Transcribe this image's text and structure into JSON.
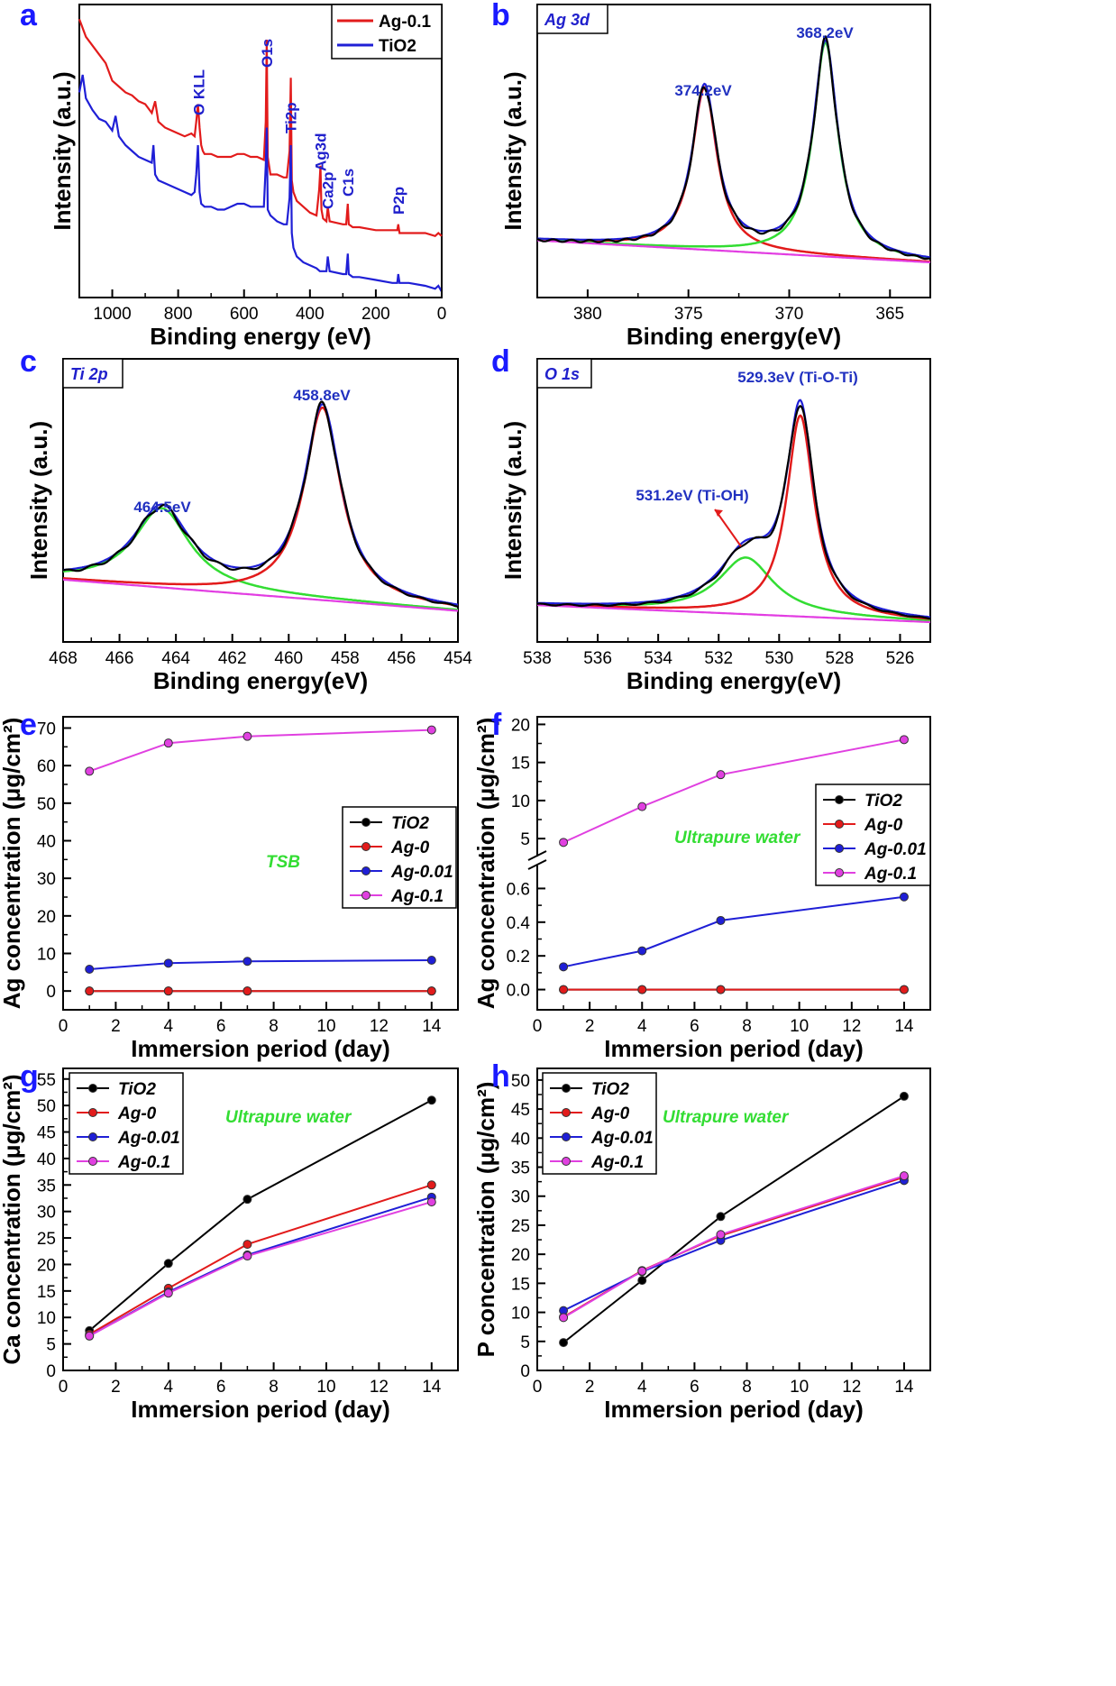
{
  "chart_data": [
    {
      "panel": "a",
      "type": "line",
      "xlabel": "Binding energy (eV)",
      "ylabel": "Intensity (a.u.)",
      "xlim": [
        1100,
        0
      ],
      "xticks": [
        1000,
        800,
        600,
        400,
        200,
        0
      ],
      "legend": {
        "placement": "top-right",
        "entries": [
          "Ag-0.1",
          "TiO2"
        ]
      },
      "series": [
        {
          "name": "Ag-0.1",
          "color": "#e21b1b",
          "x": [
            1100,
            1080,
            1040,
            1020,
            1000,
            980,
            960,
            940,
            920,
            900,
            880,
            870,
            860,
            840,
            820,
            800,
            780,
            760,
            750,
            745,
            740,
            735,
            730,
            725,
            720,
            700,
            680,
            660,
            640,
            620,
            600,
            580,
            560,
            540,
            534,
            531,
            528,
            520,
            500,
            480,
            470,
            462,
            458,
            455,
            450,
            440,
            420,
            400,
            380,
            372,
            368,
            365,
            360,
            350,
            346,
            340,
            300,
            290,
            285,
            282,
            270,
            250,
            200,
            150,
            135,
            132,
            128,
            100,
            50,
            20,
            10,
            0
          ],
          "y": [
            0.95,
            0.89,
            0.83,
            0.8,
            0.74,
            0.72,
            0.7,
            0.69,
            0.67,
            0.66,
            0.63,
            0.67,
            0.6,
            0.58,
            0.57,
            0.56,
            0.55,
            0.56,
            0.55,
            0.6,
            0.66,
            0.58,
            0.52,
            0.5,
            0.49,
            0.49,
            0.48,
            0.48,
            0.48,
            0.49,
            0.49,
            0.48,
            0.48,
            0.47,
            0.6,
            0.88,
            0.48,
            0.42,
            0.42,
            0.41,
            0.41,
            0.5,
            0.75,
            0.4,
            0.36,
            0.33,
            0.31,
            0.29,
            0.28,
            0.37,
            0.45,
            0.3,
            0.27,
            0.26,
            0.31,
            0.26,
            0.25,
            0.25,
            0.32,
            0.25,
            0.24,
            0.24,
            0.23,
            0.23,
            0.23,
            0.25,
            0.22,
            0.22,
            0.22,
            0.21,
            0.22,
            0.21
          ]
        },
        {
          "name": "TiO2",
          "color": "#1f1fd6",
          "x": [
            1100,
            1090,
            1080,
            1060,
            1040,
            1020,
            1000,
            990,
            980,
            960,
            940,
            920,
            900,
            880,
            875,
            870,
            860,
            840,
            820,
            800,
            780,
            760,
            750,
            745,
            740,
            735,
            730,
            720,
            700,
            680,
            660,
            640,
            620,
            600,
            580,
            560,
            540,
            534,
            531,
            528,
            520,
            500,
            480,
            470,
            462,
            458,
            455,
            450,
            440,
            420,
            400,
            380,
            370,
            350,
            346,
            340,
            300,
            290,
            285,
            282,
            270,
            250,
            200,
            150,
            135,
            132,
            128,
            100,
            50,
            20,
            10,
            0
          ],
          "y": [
            0.7,
            0.76,
            0.68,
            0.64,
            0.61,
            0.6,
            0.57,
            0.62,
            0.55,
            0.52,
            0.5,
            0.48,
            0.47,
            0.46,
            0.52,
            0.42,
            0.4,
            0.39,
            0.38,
            0.37,
            0.36,
            0.35,
            0.36,
            0.42,
            0.52,
            0.36,
            0.32,
            0.31,
            0.31,
            0.3,
            0.3,
            0.31,
            0.32,
            0.32,
            0.31,
            0.31,
            0.31,
            0.45,
            0.58,
            0.3,
            0.28,
            0.26,
            0.25,
            0.25,
            0.34,
            0.52,
            0.22,
            0.17,
            0.14,
            0.12,
            0.11,
            0.1,
            0.09,
            0.09,
            0.14,
            0.09,
            0.08,
            0.08,
            0.15,
            0.08,
            0.07,
            0.07,
            0.06,
            0.05,
            0.05,
            0.08,
            0.05,
            0.05,
            0.04,
            0.03,
            0.04,
            0.02
          ]
        }
      ],
      "annotations": [
        {
          "text": "O KLL",
          "x": 738
        },
        {
          "text": "O1s",
          "x": 531
        },
        {
          "text": "Ti2p",
          "x": 458
        },
        {
          "text": "Ag3d",
          "x": 368
        },
        {
          "text": "Ca2p",
          "x": 346
        },
        {
          "text": "C1s",
          "x": 284
        },
        {
          "text": "P2p",
          "x": 132
        }
      ]
    },
    {
      "panel": "b",
      "type": "line",
      "tag": "Ag 3d",
      "xlabel": "Binding energy(eV)",
      "ylabel": "Intensity (a.u.)",
      "xlim": [
        382.5,
        363
      ],
      "xticks": [
        380,
        375,
        370,
        365
      ],
      "peaks": [
        {
          "label": "374.2eV",
          "x": 374.2
        },
        {
          "label": "368.2eV",
          "x": 368.2
        }
      ]
    },
    {
      "panel": "c",
      "type": "line",
      "tag": "Ti 2p",
      "xlabel": "Binding energy(eV)",
      "ylabel": "Intensity (a.u.)",
      "xlim": [
        468,
        454
      ],
      "xticks": [
        468,
        466,
        464,
        462,
        460,
        458,
        456,
        454
      ],
      "peaks": [
        {
          "label": "464.5eV",
          "x": 464.5
        },
        {
          "label": "458.8eV",
          "x": 458.8
        }
      ]
    },
    {
      "panel": "d",
      "type": "line",
      "tag": "O 1s",
      "xlabel": "Binding energy(eV)",
      "ylabel": "Intensity (a.u.)",
      "xlim": [
        538,
        525
      ],
      "xticks": [
        538,
        536,
        534,
        532,
        530,
        528,
        526
      ],
      "peaks": [
        {
          "label": "529.3eV (Ti-O-Ti)",
          "x": 529.3
        },
        {
          "label": "531.2eV (Ti-OH)",
          "x": 531.2
        }
      ]
    },
    {
      "panel": "e",
      "type": "line",
      "xlabel": "Immersion period (day)",
      "ylabel": "Ag concentration (μg/cm²)",
      "xlim": [
        0,
        15
      ],
      "ylim": [
        -5,
        73
      ],
      "xticks": [
        0,
        2,
        4,
        6,
        8,
        10,
        12,
        14
      ],
      "yticks": [
        0,
        10,
        20,
        30,
        40,
        50,
        60,
        70
      ],
      "medium": "TSB",
      "legend": {
        "placement": "center-right"
      },
      "x": [
        1,
        4,
        7,
        14
      ],
      "series": [
        {
          "name": "TiO2",
          "color": "#000000",
          "values": [
            0,
            0,
            0,
            0
          ]
        },
        {
          "name": "Ag-0",
          "color": "#e21b1b",
          "values": [
            0,
            0,
            0,
            0
          ]
        },
        {
          "name": "Ag-0.01",
          "color": "#1f1fd6",
          "values": [
            5.8,
            7.4,
            7.9,
            8.2
          ]
        },
        {
          "name": "Ag-0.1",
          "color": "#e040e0",
          "values": [
            58.5,
            66,
            67.8,
            69.5
          ]
        }
      ]
    },
    {
      "panel": "f",
      "type": "line",
      "xlabel": "Immersion period (day)",
      "ylabel": "Ag concentration (μg/cm²)",
      "xlim": [
        0,
        15
      ],
      "axis_break": true,
      "ylim_lower": [
        -0.12,
        0.72
      ],
      "ylim_upper": [
        3,
        21
      ],
      "xticks": [
        0,
        2,
        4,
        6,
        8,
        10,
        12,
        14
      ],
      "yticks_lower": [
        0.0,
        0.2,
        0.4,
        0.6
      ],
      "yticks_upper": [
        5,
        10,
        15,
        20
      ],
      "ytick_labels_lower": [
        "0.0",
        "0.2",
        "0.4",
        "0.6"
      ],
      "medium": "Ultrapure water",
      "legend": {
        "placement": "center-right"
      },
      "x": [
        1,
        4,
        7,
        14
      ],
      "series": [
        {
          "name": "TiO2",
          "color": "#000000",
          "values": [
            0,
            0,
            0,
            0
          ]
        },
        {
          "name": "Ag-0",
          "color": "#e21b1b",
          "values": [
            0,
            0,
            0,
            0
          ]
        },
        {
          "name": "Ag-0.01",
          "color": "#1f1fd6",
          "values": [
            0.135,
            0.23,
            0.41,
            0.55
          ]
        },
        {
          "name": "Ag-0.1",
          "color": "#e040e0",
          "values": [
            4.5,
            9.2,
            13.4,
            18
          ]
        }
      ]
    },
    {
      "panel": "g",
      "type": "line",
      "xlabel": "Immersion period (day)",
      "ylabel": "Ca concentration (μg/cm²)",
      "xlim": [
        0,
        15
      ],
      "ylim": [
        0,
        57
      ],
      "xticks": [
        0,
        2,
        4,
        6,
        8,
        10,
        12,
        14
      ],
      "yticks": [
        0,
        5,
        10,
        15,
        20,
        25,
        30,
        35,
        40,
        45,
        50,
        55
      ],
      "medium": "Ultrapure water",
      "legend": {
        "placement": "top-left"
      },
      "x": [
        1,
        4,
        7,
        14
      ],
      "series": [
        {
          "name": "TiO2",
          "color": "#000000",
          "values": [
            7.5,
            20.2,
            32.3,
            51
          ]
        },
        {
          "name": "Ag-0",
          "color": "#e21b1b",
          "values": [
            6.8,
            15.5,
            23.8,
            35
          ]
        },
        {
          "name": "Ag-0.01",
          "color": "#1f1fd6",
          "values": [
            6.5,
            14.8,
            21.8,
            32.7
          ]
        },
        {
          "name": "Ag-0.1",
          "color": "#e040e0",
          "values": [
            6.5,
            14.6,
            21.6,
            31.8
          ]
        }
      ]
    },
    {
      "panel": "h",
      "type": "line",
      "xlabel": "Immersion period (day)",
      "ylabel": "P concentration (μg/cm²)",
      "xlim": [
        0,
        15
      ],
      "ylim": [
        0,
        52
      ],
      "xticks": [
        0,
        2,
        4,
        6,
        8,
        10,
        12,
        14
      ],
      "yticks": [
        0,
        5,
        10,
        15,
        20,
        25,
        30,
        35,
        40,
        45,
        50
      ],
      "medium": "Ultrapure water",
      "legend": {
        "placement": "top-left"
      },
      "x": [
        1,
        4,
        7,
        14
      ],
      "series": [
        {
          "name": "TiO2",
          "color": "#000000",
          "values": [
            4.8,
            15.5,
            26.5,
            47.2
          ]
        },
        {
          "name": "Ag-0",
          "color": "#e21b1b",
          "values": [
            9.2,
            17.2,
            23.2,
            33.3
          ]
        },
        {
          "name": "Ag-0.01",
          "color": "#1f1fd6",
          "values": [
            10.3,
            17,
            22.4,
            32.7
          ]
        },
        {
          "name": "Ag-0.1",
          "color": "#e040e0",
          "values": [
            9.1,
            17.1,
            23.4,
            33.5
          ]
        }
      ]
    }
  ],
  "panel_letters": [
    "a",
    "b",
    "c",
    "d",
    "e",
    "f",
    "g",
    "h"
  ]
}
